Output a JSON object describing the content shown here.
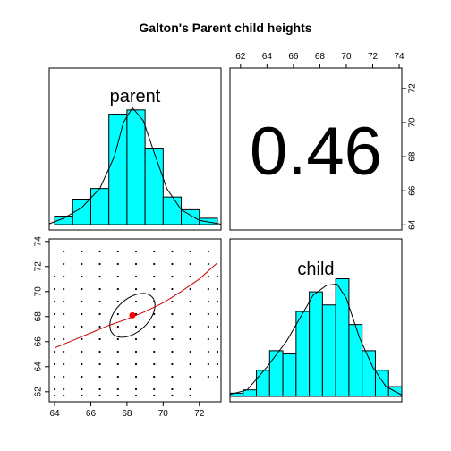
{
  "chart_data": {
    "type": "scatterplot-matrix",
    "title": "Galton's Parent child heights",
    "variables": [
      "parent",
      "child"
    ],
    "correlation_label": "0.46",
    "axes": {
      "parent": {
        "range": [
          63.7,
          73.2
        ],
        "ticks": [
          64,
          66,
          68,
          70,
          72
        ]
      },
      "child": {
        "range": [
          61.2,
          74.2
        ],
        "ticks": [
          62,
          64,
          66,
          68,
          70,
          72,
          74
        ]
      },
      "top_ticks": [
        62,
        64,
        66,
        68,
        70,
        72,
        74
      ],
      "right_ticks": [
        64,
        66,
        68,
        70,
        72
      ],
      "left_ticks": [
        62,
        64,
        66,
        68,
        70,
        72,
        74
      ],
      "bottom_ticks": [
        64,
        66,
        68,
        70,
        72
      ]
    },
    "histograms": {
      "parent": {
        "breaks": [
          64,
          65,
          66,
          67,
          68,
          69,
          70,
          71,
          72,
          73
        ],
        "density": [
          0.02,
          0.06,
          0.085,
          0.26,
          0.27,
          0.18,
          0.065,
          0.035,
          0.015
        ],
        "density_curve": [
          [
            63.7,
            0.002
          ],
          [
            64.5,
            0.015
          ],
          [
            65.5,
            0.04
          ],
          [
            66.5,
            0.085
          ],
          [
            67.3,
            0.16
          ],
          [
            67.8,
            0.24
          ],
          [
            68.3,
            0.275
          ],
          [
            68.9,
            0.245
          ],
          [
            69.5,
            0.17
          ],
          [
            70.2,
            0.085
          ],
          [
            71,
            0.035
          ],
          [
            72,
            0.01
          ],
          [
            73.2,
            0.001
          ]
        ]
      },
      "child": {
        "breaks": [
          61.2,
          62.2,
          63.2,
          64.2,
          65.2,
          66.2,
          67.2,
          68.2,
          69.2,
          70.2,
          71.2,
          72.2,
          73.2,
          74.2
        ],
        "density": [
          0.005,
          0.01,
          0.04,
          0.07,
          0.065,
          0.13,
          0.16,
          0.14,
          0.18,
          0.11,
          0.07,
          0.04,
          0.015
        ],
        "density_curve": [
          [
            61.2,
            0.003
          ],
          [
            62.5,
            0.01
          ],
          [
            64,
            0.045
          ],
          [
            65.5,
            0.085
          ],
          [
            66.5,
            0.12
          ],
          [
            67.5,
            0.155
          ],
          [
            68.5,
            0.17
          ],
          [
            69.3,
            0.172
          ],
          [
            70,
            0.15
          ],
          [
            71,
            0.09
          ],
          [
            72,
            0.045
          ],
          [
            73,
            0.015
          ],
          [
            74.2,
            0.002
          ]
        ]
      }
    },
    "scatter": {
      "x_values": [
        64,
        64.5,
        65.5,
        66.5,
        67.5,
        68.5,
        69.5,
        70.5,
        71.5,
        72.5,
        73
      ],
      "y_values": [
        61.7,
        62.2,
        63.2,
        64.2,
        65.2,
        66.2,
        67.2,
        68.2,
        69.2,
        70.2,
        71.2,
        72.2,
        73.2
      ],
      "mean": [
        68.3,
        68.1
      ],
      "lowess": [
        [
          64,
          65.5
        ],
        [
          65,
          66.1
        ],
        [
          66,
          66.7
        ],
        [
          67,
          67.3
        ],
        [
          68,
          67.8
        ],
        [
          69,
          68.4
        ],
        [
          70,
          69.1
        ],
        [
          71,
          70
        ],
        [
          72,
          71
        ],
        [
          73,
          72.3
        ]
      ],
      "ellipse": {
        "center": [
          68.3,
          68.1
        ],
        "sd_x": 1.25,
        "sd_y": 1.75,
        "r": 0.46,
        "level": 1
      }
    },
    "colors": {
      "bar_fill": "#00ffff",
      "mean_point": "#ff0000",
      "lowess_line": "#cc0000",
      "points": "#000000"
    }
  }
}
